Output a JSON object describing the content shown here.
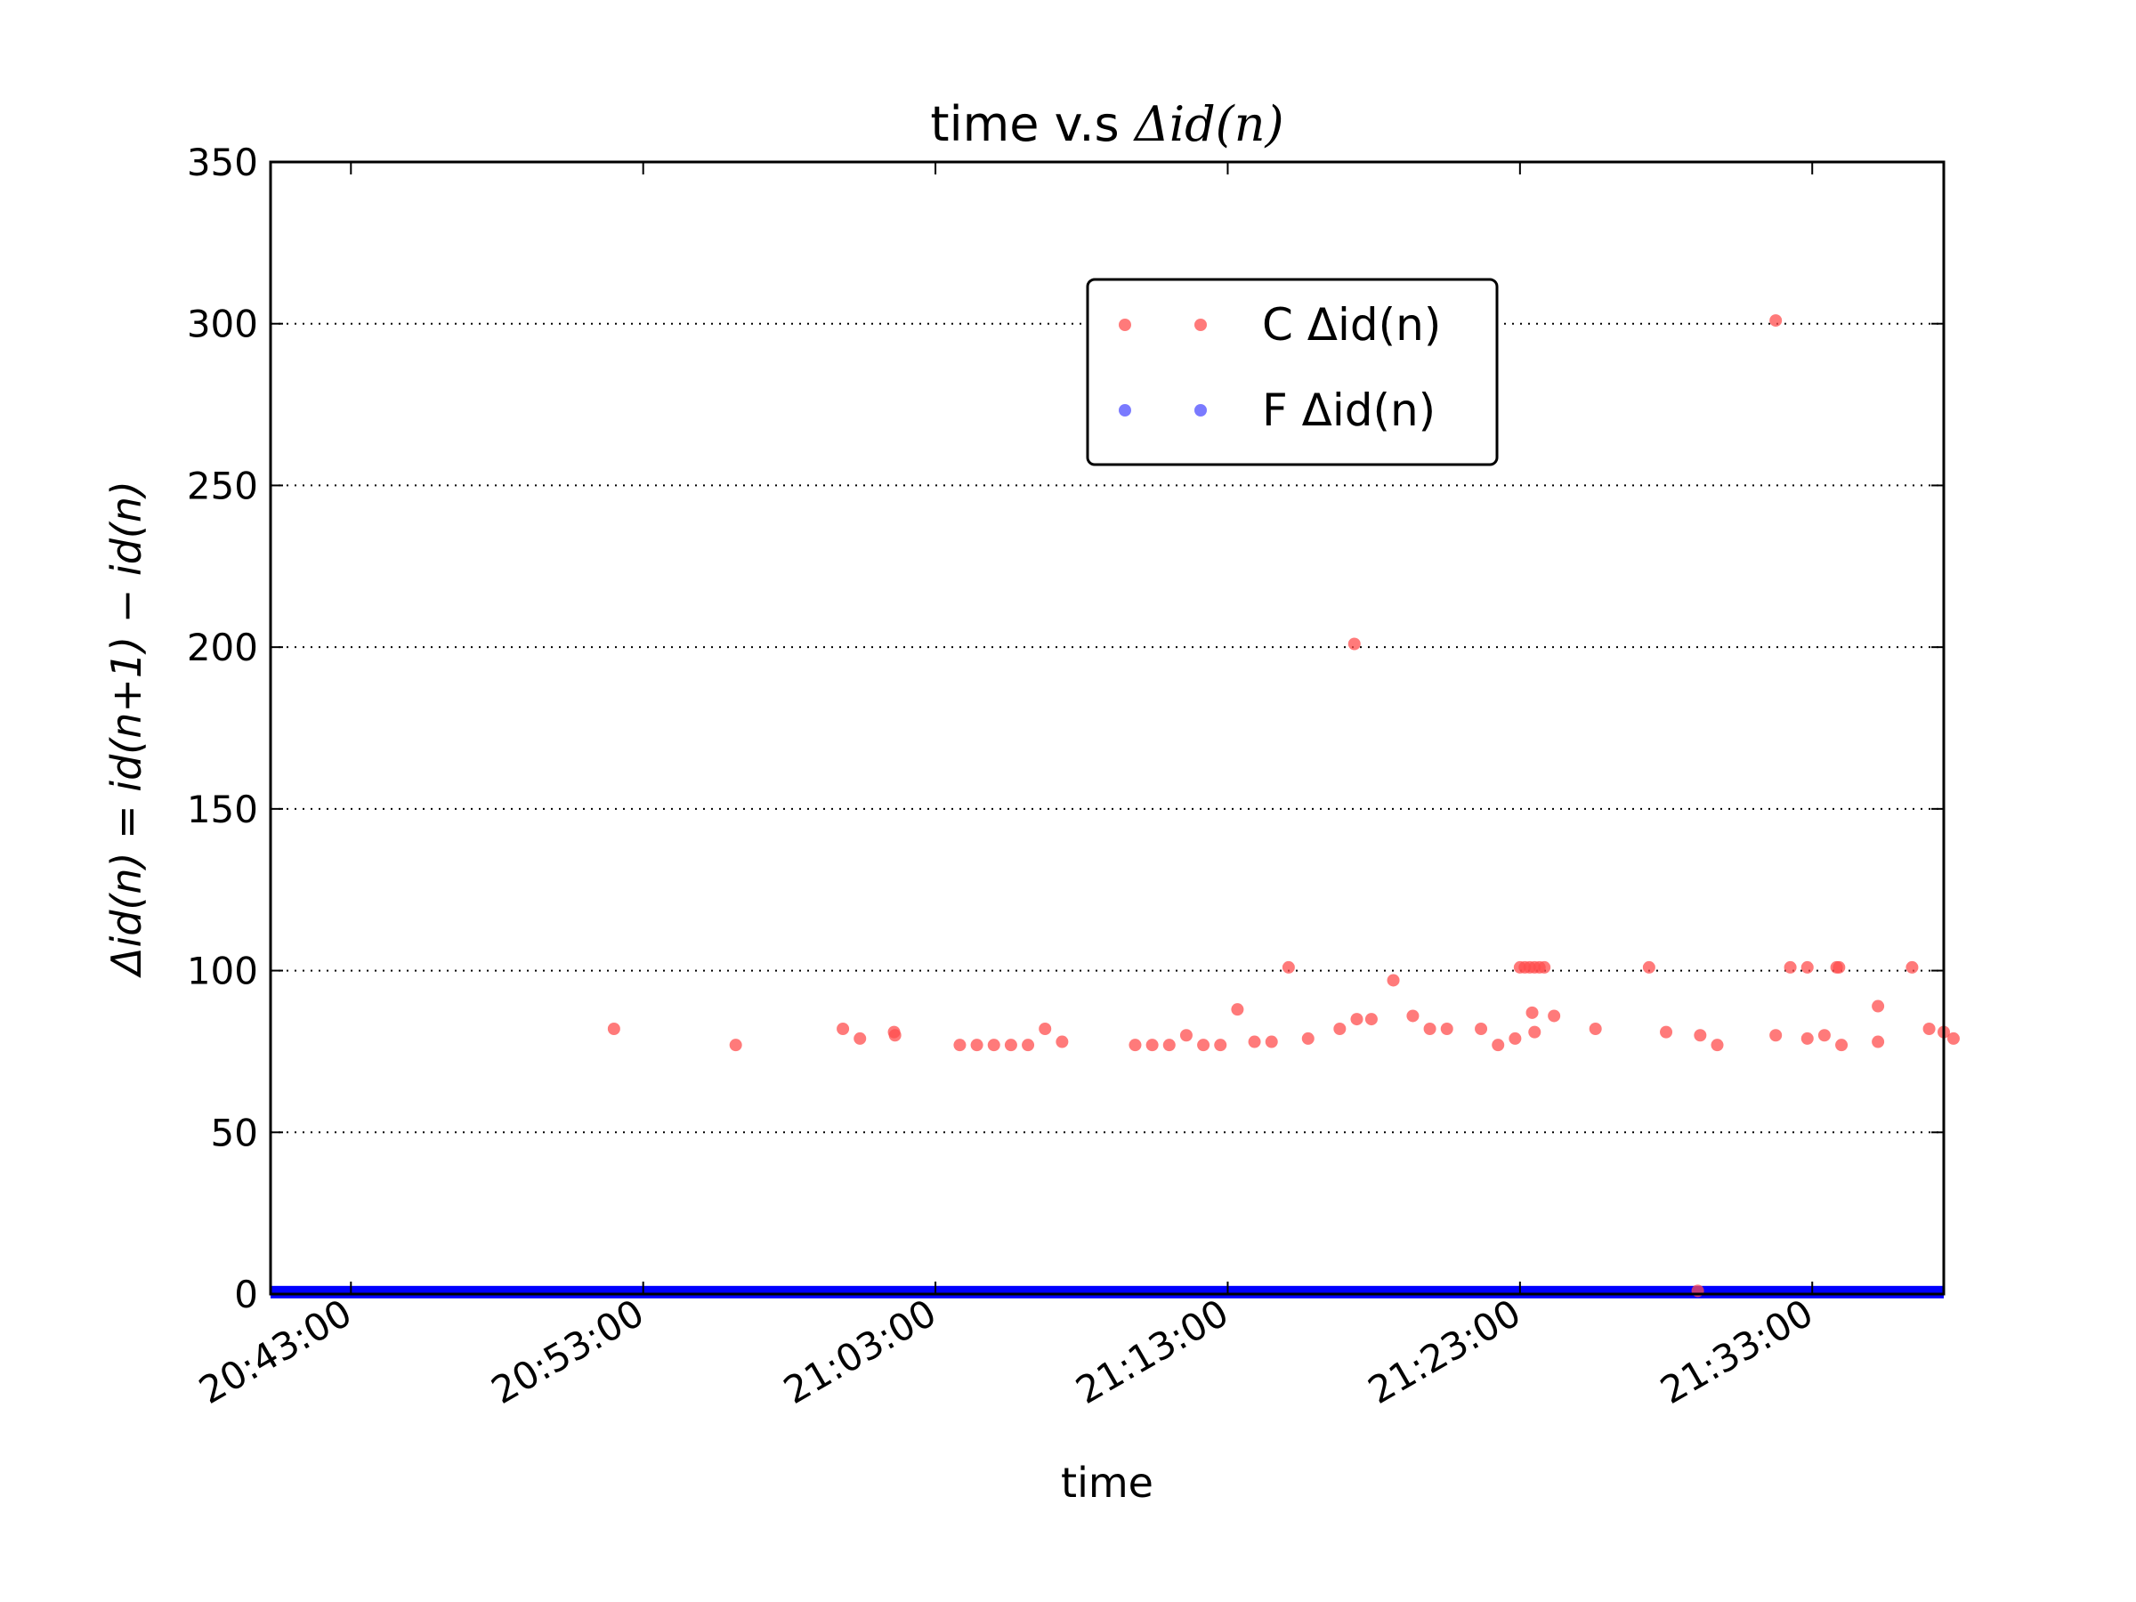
{
  "chart_data": {
    "type": "scatter",
    "title": {
      "prefix": "time v.s ",
      "math": "Δid(n)"
    },
    "xlabel": "time",
    "ylabel": "Δid(n) = id(n+1) − id(n)",
    "ylim": [
      0,
      350
    ],
    "xlim": [
      "20:40:15",
      "21:37:30"
    ],
    "yticks": [
      0,
      50,
      100,
      150,
      200,
      250,
      300,
      350
    ],
    "xticks": [
      "20:43:00",
      "20:53:00",
      "21:03:00",
      "21:13:00",
      "21:23:00",
      "21:33:00"
    ],
    "grid": "horizontal-dotted",
    "legend_position": "upper-center",
    "series": [
      {
        "name": "C Δid(n)",
        "color": "#ff4d4d",
        "points": [
          [
            "20:52:00",
            82
          ],
          [
            "20:56:10",
            77
          ],
          [
            "20:59:50",
            82
          ],
          [
            "21:00:25",
            79
          ],
          [
            "21:01:35",
            81
          ],
          [
            "21:01:37",
            80
          ],
          [
            "21:03:50",
            77
          ],
          [
            "21:04:25",
            77
          ],
          [
            "21:05:00",
            77
          ],
          [
            "21:05:35",
            77
          ],
          [
            "21:06:10",
            77
          ],
          [
            "21:06:45",
            82
          ],
          [
            "21:07:20",
            78
          ],
          [
            "21:09:50",
            77
          ],
          [
            "21:10:25",
            77
          ],
          [
            "21:11:00",
            77
          ],
          [
            "21:11:35",
            80
          ],
          [
            "21:12:10",
            77
          ],
          [
            "21:12:45",
            77
          ],
          [
            "21:13:20",
            88
          ],
          [
            "21:13:55",
            78
          ],
          [
            "21:14:30",
            78
          ],
          [
            "21:15:05",
            101
          ],
          [
            "21:15:45",
            79
          ],
          [
            "21:16:50",
            82
          ],
          [
            "21:17:20",
            201
          ],
          [
            "21:17:25",
            85
          ],
          [
            "21:17:55",
            85
          ],
          [
            "21:18:40",
            97
          ],
          [
            "21:19:20",
            86
          ],
          [
            "21:19:55",
            82
          ],
          [
            "21:20:30",
            82
          ],
          [
            "21:21:40",
            82
          ],
          [
            "21:22:15",
            77
          ],
          [
            "21:22:50",
            79
          ],
          [
            "21:23:00",
            101
          ],
          [
            "21:23:10",
            101
          ],
          [
            "21:23:20",
            101
          ],
          [
            "21:23:30",
            101
          ],
          [
            "21:23:40",
            101
          ],
          [
            "21:23:50",
            101
          ],
          [
            "21:23:25",
            87
          ],
          [
            "21:23:30",
            81
          ],
          [
            "21:24:10",
            86
          ],
          [
            "21:25:35",
            82
          ],
          [
            "21:27:25",
            101
          ],
          [
            "21:28:00",
            81
          ],
          [
            "21:29:10",
            80
          ],
          [
            "21:29:45",
            77
          ],
          [
            "21:31:45",
            301
          ],
          [
            "21:31:45",
            80
          ],
          [
            "21:32:15",
            101
          ],
          [
            "21:32:50",
            101
          ],
          [
            "21:32:50",
            79
          ],
          [
            "21:33:25",
            80
          ],
          [
            "21:33:50",
            101
          ],
          [
            "21:33:55",
            101
          ],
          [
            "21:34:00",
            77
          ],
          [
            "21:35:15",
            89
          ],
          [
            "21:35:15",
            78
          ],
          [
            "21:36:25",
            101
          ],
          [
            "21:37:00",
            82
          ],
          [
            "21:37:30",
            81
          ],
          [
            "21:37:50",
            79
          ],
          [
            "21:29:05",
            1
          ]
        ]
      },
      {
        "name": "F Δid(n)",
        "color": "#4d4dff",
        "band": {
          "from": "20:40:15",
          "to": "21:37:30",
          "y": 0.6
        }
      }
    ]
  }
}
